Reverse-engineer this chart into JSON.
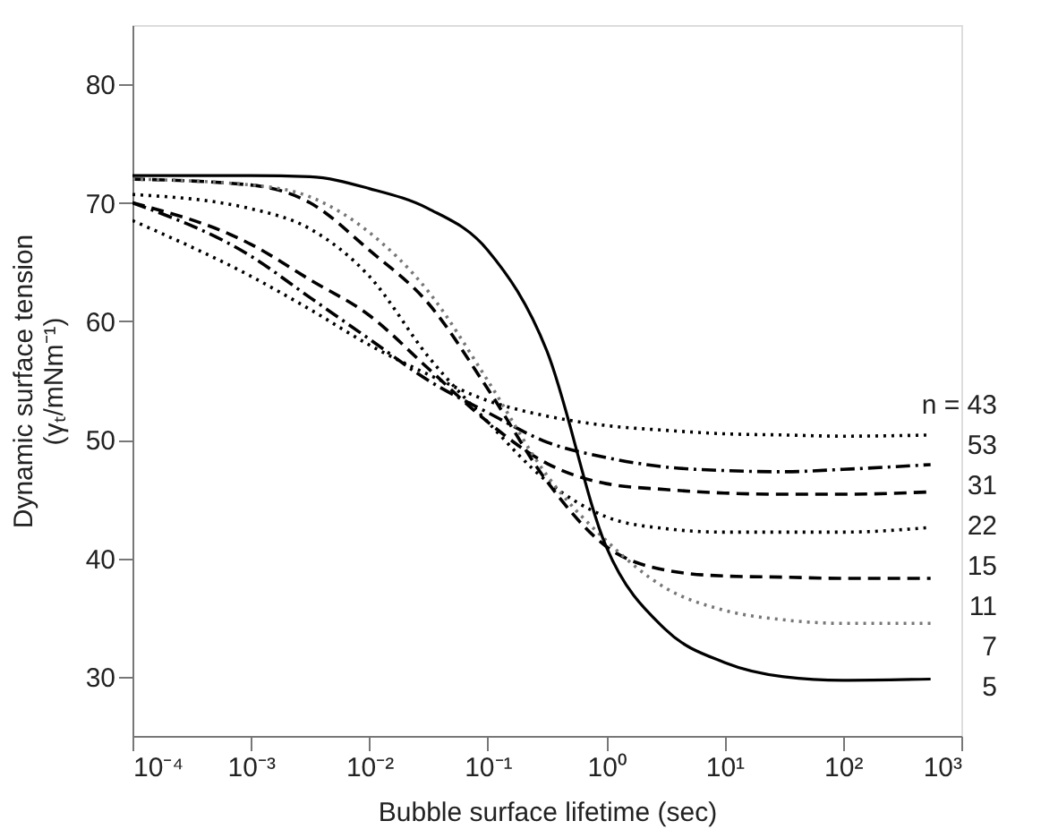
{
  "chart_data": {
    "type": "line",
    "xlabel": "Bubble surface lifetime (sec)",
    "ylabel": "Dynamic surface tension\n(γₜ/mNm⁻¹)",
    "log": "x",
    "grid": false,
    "marker": "none",
    "xlim": [
      0.0001,
      1000
    ],
    "ylim": [
      25,
      85
    ],
    "xticks": [
      {
        "value": 0.0001,
        "label": "10⁻⁴"
      },
      {
        "value": 0.001,
        "label": "10⁻³"
      },
      {
        "value": 0.01,
        "label": "10⁻²"
      },
      {
        "value": 0.1,
        "label": "10⁻¹"
      },
      {
        "value": 1,
        "label": "10⁰"
      },
      {
        "value": 10,
        "label": "10¹"
      },
      {
        "value": 100,
        "label": "10²"
      },
      {
        "value": 1000,
        "label": "10³"
      }
    ],
    "yticks": [
      30,
      40,
      50,
      60,
      70,
      80
    ],
    "x": [
      0.0001,
      0.001,
      0.00316,
      0.01,
      0.0316,
      0.1,
      0.316,
      1,
      3.16,
      10,
      31.6,
      100,
      550
    ],
    "series": [
      {
        "color": "#000000",
        "line_style": "dotted",
        "values": [
          68.5,
          63.8,
          61,
          58,
          55.5,
          53.3,
          52,
          51.2,
          50.8,
          50.5,
          50.4,
          50.3,
          50.4
        ]
      },
      {
        "color": "#000000",
        "line_style": "dashdot",
        "values": [
          70,
          65.5,
          62,
          58.5,
          55,
          52.3,
          49.8,
          48.5,
          47.7,
          47.4,
          47.3,
          47.5,
          47.9
        ]
      },
      {
        "color": "#000000",
        "line_style": "dashed",
        "values": [
          70,
          66.5,
          63.5,
          60.5,
          56,
          51.5,
          48,
          46.3,
          45.8,
          45.5,
          45.4,
          45.4,
          45.6
        ]
      },
      {
        "color": "#000000",
        "line_style": "dotted",
        "values": [
          70.7,
          69.5,
          67.8,
          63.8,
          57,
          51.5,
          46.5,
          43.5,
          42.5,
          42.2,
          42.2,
          42.2,
          42.6
        ]
      },
      {
        "color": "#000000",
        "line_style": "dashed",
        "values": [
          72,
          71.5,
          70,
          66,
          61.5,
          54.3,
          46.5,
          41,
          39,
          38.5,
          38.4,
          38.3,
          38.3
        ]
      },
      {
        "color": "#777777",
        "line_style": "dotted",
        "values": [
          72,
          71.5,
          70.5,
          67.5,
          62.5,
          55,
          47,
          41.5,
          37.5,
          35.6,
          34.8,
          34.5,
          34.5
        ]
      },
      {
        "color": "#000000",
        "line_style": "solid",
        "values": [
          72.3,
          72.3,
          72.2,
          71.2,
          69.5,
          66,
          57.5,
          41,
          34,
          31.2,
          30,
          29.7,
          29.8
        ]
      }
    ],
    "annotations": [
      "n = 43",
      "53",
      "31",
      "22",
      "15",
      "11",
      "7",
      "5"
    ]
  }
}
